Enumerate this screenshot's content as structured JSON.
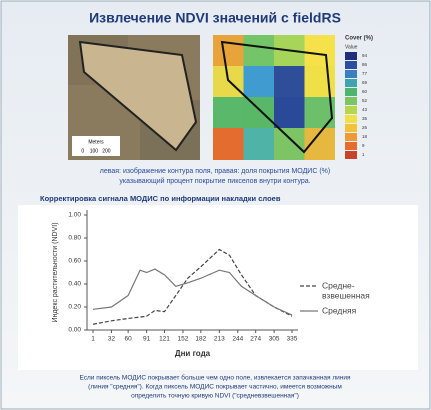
{
  "header": {
    "title": "Извлечение NDVI значений с fieldRS"
  },
  "scale_bar": {
    "title": "Meters",
    "ticks": "0    100   200"
  },
  "cover_legend": {
    "title": "Cover (%)",
    "subtitle": "Value",
    "items": [
      {
        "label": "94",
        "color": "#1f2f7a"
      },
      {
        "label": "86",
        "color": "#2b4f9e"
      },
      {
        "label": "77",
        "color": "#3a7fbf"
      },
      {
        "label": "69",
        "color": "#3fa3b0"
      },
      {
        "label": "60",
        "color": "#4fb56e"
      },
      {
        "label": "52",
        "color": "#7cc464"
      },
      {
        "label": "43",
        "color": "#b5d650"
      },
      {
        "label": "35",
        "color": "#f0e048"
      },
      {
        "label": "26",
        "color": "#f3c13a"
      },
      {
        "label": "18",
        "color": "#ec9a33"
      },
      {
        "label": "9",
        "color": "#e36c2f"
      },
      {
        "label": "1",
        "color": "#c9432a"
      }
    ]
  },
  "caption": [
    "левая: изображение контура поля, правая: доля покрытия МОДИС (%)",
    "указывающий процент покрытие пикселов внутри контура."
  ],
  "section_title": "Корректировка сигнала МОДИС по информации накладки слоев",
  "chart_data": {
    "type": "line",
    "y_label": "Индекс растительности (NDVI)",
    "x_label": "Дни года",
    "xlim": [
      1,
      335
    ],
    "xticks": [
      1,
      32,
      60,
      91,
      121,
      152,
      182,
      213,
      244,
      274,
      305,
      335
    ],
    "ylim": [
      0,
      1
    ],
    "yticks": [
      {
        "value": 0,
        "label": "0.00"
      },
      {
        "value": 0.2,
        "label": "0.20"
      },
      {
        "value": 0.4,
        "label": "0.40"
      },
      {
        "value": 0.6,
        "label": "0.60"
      },
      {
        "value": 0.8,
        "label": "0.80"
      },
      {
        "value": 1,
        "label": "1.00"
      }
    ],
    "series": [
      {
        "name": [
          "Средне-",
          "взвешенная"
        ],
        "color": "#444444",
        "dashed": true,
        "x": [
          1,
          32,
          60,
          91,
          105,
          121,
          140,
          160,
          182,
          213,
          230,
          250,
          274,
          305,
          335
        ],
        "values": [
          0.05,
          0.08,
          0.1,
          0.12,
          0.17,
          0.16,
          0.3,
          0.45,
          0.55,
          0.7,
          0.65,
          0.48,
          0.3,
          0.2,
          0.12
        ]
      },
      {
        "name": [
          "Средняя"
        ],
        "color": "#777777",
        "dashed": false,
        "x": [
          1,
          32,
          60,
          80,
          91,
          105,
          121,
          140,
          160,
          182,
          213,
          230,
          250,
          274,
          305,
          335
        ],
        "values": [
          0.18,
          0.2,
          0.3,
          0.52,
          0.5,
          0.53,
          0.48,
          0.38,
          0.41,
          0.45,
          0.52,
          0.5,
          0.38,
          0.3,
          0.2,
          0.13
        ]
      }
    ]
  },
  "footer": [
    "Если пиксель МОДИС покрывает больше чем одно поле, извлекается запачканная линия",
    "(линия \"средняя\"). Когда пиксель МОДИС покрывает частично, имеется возможным",
    "определить точную кривую NDVI (\"средневзвешенная\")"
  ]
}
